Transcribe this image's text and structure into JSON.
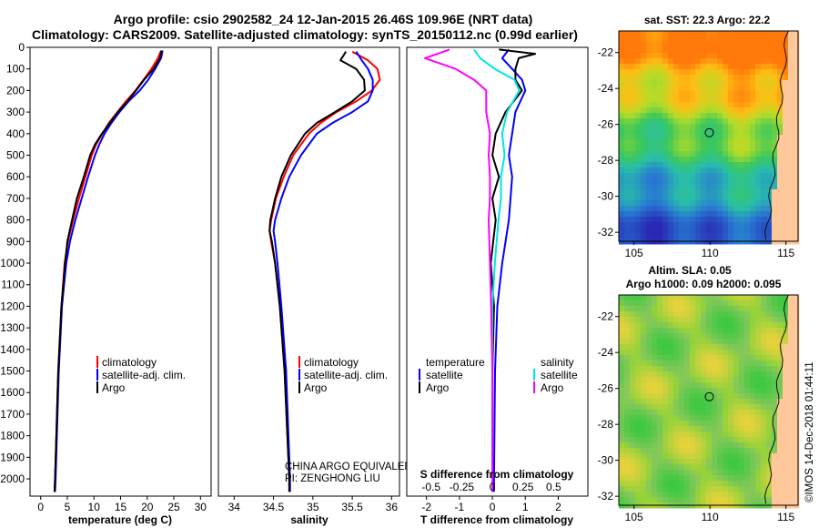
{
  "title": {
    "line1": "Argo profile: csio 2902582_24 12-Jan-2015 26.46S 109.96E (NRT data)",
    "line2": "Climatology: CARS2009. Satellite-adjusted climatology: synTS_20150112.nc (0.99d earlier)"
  },
  "colors": {
    "climatology": "#ff0000",
    "satellite": "#0000ff",
    "argo": "#000000",
    "argo_salinity": "#ff00ff",
    "satellite_salinity": "#00e5e5"
  },
  "depth_axis": {
    "ticks": [
      0,
      100,
      200,
      300,
      400,
      500,
      600,
      700,
      800,
      900,
      1000,
      1100,
      1200,
      1300,
      1400,
      1500,
      1600,
      1700,
      1800,
      1900,
      2000
    ],
    "range": [
      0,
      2080
    ]
  },
  "chart_data": [
    {
      "type": "line",
      "id": "temperature",
      "xlabel": "temperature (deg C)",
      "ylabel": "depth",
      "xlim": [
        -2,
        32
      ],
      "ylim": [
        2080,
        0
      ],
      "xticks": [
        0,
        5,
        10,
        15,
        20,
        25,
        30
      ],
      "legend": [
        "climatology",
        "satellite-adj. clim.",
        "Argo"
      ],
      "series": [
        {
          "name": "climatology",
          "depth": [
            15,
            50,
            100,
            150,
            200,
            250,
            300,
            350,
            400,
            450,
            500,
            600,
            700,
            800,
            900,
            1000,
            1200,
            1500,
            2000,
            2060
          ],
          "values": [
            22.6,
            22.0,
            20.8,
            19.3,
            17.8,
            16.0,
            14.4,
            12.8,
            11.6,
            10.4,
            9.6,
            8.4,
            7.2,
            6.1,
            5.1,
            4.5,
            3.9,
            3.3,
            2.7,
            2.6
          ]
        },
        {
          "name": "satellite-adj. clim.",
          "depth": [
            15,
            50,
            100,
            150,
            200,
            250,
            300,
            350,
            400,
            450,
            500,
            600,
            700,
            800,
            900,
            1000,
            1200,
            1500,
            2000,
            2060
          ],
          "values": [
            22.9,
            22.6,
            21.5,
            20.2,
            18.6,
            16.5,
            14.8,
            13.3,
            12.0,
            11.0,
            10.2,
            8.9,
            7.7,
            6.5,
            5.5,
            4.8,
            4.0,
            3.4,
            2.8,
            2.7
          ]
        },
        {
          "name": "Argo",
          "depth": [
            15,
            50,
            100,
            150,
            200,
            250,
            300,
            350,
            400,
            450,
            500,
            600,
            700,
            800,
            900,
            1000,
            1200,
            1500,
            2000,
            2060
          ],
          "values": [
            22.7,
            22.4,
            21.2,
            19.4,
            17.9,
            16.3,
            14.5,
            13.0,
            11.5,
            10.2,
            9.3,
            8.1,
            6.8,
            5.9,
            5.0,
            4.6,
            3.9,
            3.3,
            2.7,
            2.6
          ]
        }
      ]
    },
    {
      "type": "line",
      "id": "salinity",
      "xlabel": "salinity",
      "ylabel": "depth",
      "xlim": [
        33.8,
        36.1
      ],
      "ylim": [
        2080,
        0
      ],
      "xticks": [
        34,
        34.5,
        35,
        35.5,
        36
      ],
      "legend": [
        "climatology",
        "satellite-adj. clim.",
        "Argo"
      ],
      "annotations": [
        "CHINA ARGO EQUIVALENT",
        "PI: ZENGHONG LIU"
      ],
      "series": [
        {
          "name": "climatology",
          "depth": [
            20,
            60,
            100,
            150,
            200,
            250,
            300,
            350,
            400,
            500,
            600,
            700,
            800,
            850,
            900,
            1000,
            1200,
            1500,
            2000,
            2060
          ],
          "values": [
            35.5,
            35.7,
            35.82,
            35.85,
            35.75,
            35.55,
            35.3,
            35.1,
            34.95,
            34.75,
            34.63,
            34.53,
            34.47,
            34.45,
            34.47,
            34.52,
            34.58,
            34.64,
            34.7,
            34.7
          ]
        },
        {
          "name": "satellite-adj. clim.",
          "depth": [
            20,
            60,
            100,
            150,
            200,
            250,
            300,
            350,
            400,
            500,
            600,
            700,
            800,
            850,
            900,
            1000,
            1200,
            1500,
            2000,
            2060
          ],
          "values": [
            35.55,
            35.62,
            35.7,
            35.76,
            35.76,
            35.7,
            35.5,
            35.25,
            35.05,
            34.85,
            34.7,
            34.6,
            34.52,
            34.5,
            34.52,
            34.55,
            34.6,
            34.66,
            34.71,
            34.71
          ]
        },
        {
          "name": "Argo",
          "depth": [
            20,
            60,
            100,
            150,
            200,
            250,
            300,
            350,
            400,
            500,
            600,
            700,
            800,
            850,
            900,
            1000,
            1200,
            1500,
            2000,
            2060
          ],
          "values": [
            35.42,
            35.35,
            35.55,
            35.65,
            35.66,
            35.5,
            35.28,
            35.05,
            34.9,
            34.72,
            34.6,
            34.52,
            34.46,
            34.45,
            34.48,
            34.52,
            34.58,
            34.64,
            34.7,
            34.7
          ]
        }
      ]
    },
    {
      "type": "line",
      "id": "difference",
      "xlabel": "T difference from climatology",
      "xlabel2": "S difference from climatology",
      "xlim": [
        -2.6,
        2.9
      ],
      "ylim": [
        2080,
        0
      ],
      "xticks": [
        -2,
        -1,
        0,
        1,
        2
      ],
      "sticks": [
        "-0.5",
        "-0.25",
        "0",
        "0.25",
        "0.5"
      ],
      "legend_temperature_title": "temperature",
      "legend_salinity_title": "salinity",
      "legend": [
        "satellite",
        "Argo"
      ],
      "series": [
        {
          "name": "temperature satellite",
          "depth": [
            10,
            50,
            100,
            150,
            200,
            300,
            400,
            500,
            600,
            700,
            800,
            1000,
            1200,
            1500,
            2000,
            2060
          ],
          "values": [
            0.5,
            0.3,
            0.6,
            0.9,
            1.0,
            0.7,
            0.6,
            0.5,
            0.6,
            0.55,
            0.5,
            0.3,
            0.15,
            0.08,
            0.05,
            0.05
          ]
        },
        {
          "name": "temperature Argo",
          "depth": [
            10,
            30,
            50,
            100,
            150,
            200,
            300,
            400,
            500,
            600,
            700,
            800,
            1000,
            1200,
            1500,
            2000,
            2060
          ],
          "values": [
            0.2,
            1.3,
            0.8,
            0.7,
            0.7,
            0.9,
            0.4,
            0.1,
            0.0,
            0.2,
            0.0,
            0.1,
            -0.05,
            0.05,
            0.0,
            0.0,
            0.0
          ]
        },
        {
          "name": "salinity satellite",
          "depth": [
            10,
            50,
            100,
            150,
            200,
            300,
            400,
            500,
            600,
            700,
            800,
            1000,
            1200,
            1500,
            2000,
            2060
          ],
          "values": [
            -0.15,
            -0.1,
            0.02,
            0.18,
            0.22,
            0.12,
            0.08,
            0.1,
            0.07,
            0.07,
            0.05,
            0.02,
            0.0,
            0.0,
            0.0,
            0.0
          ]
        },
        {
          "name": "salinity Argo",
          "depth": [
            10,
            50,
            100,
            150,
            200,
            300,
            400,
            500,
            600,
            700,
            800,
            1000,
            1200,
            1500,
            2000,
            2060
          ],
          "values": [
            -0.35,
            -0.55,
            -0.3,
            -0.15,
            -0.05,
            -0.05,
            -0.02,
            -0.03,
            -0.02,
            -0.02,
            -0.03,
            -0.02,
            -0.01,
            0.0,
            0.0,
            0.0
          ]
        }
      ]
    },
    {
      "type": "heatmap",
      "id": "sst_map",
      "title": "sat. SST: 22.3 Argo: 22.2",
      "xlim": [
        104,
        115.8
      ],
      "ylim": [
        -32.5,
        -20.8
      ],
      "xticks": [
        105,
        110,
        115
      ],
      "yticks": [
        -22,
        -24,
        -26,
        -28,
        -30,
        -32
      ],
      "marker": {
        "lon": 109.96,
        "lat": -26.46
      }
    },
    {
      "type": "heatmap",
      "id": "sla_map",
      "title": "Altim. SLA: 0.05",
      "subtitle": "Argo h1000: 0.09 h2000: 0.095",
      "xlim": [
        104,
        115.8
      ],
      "ylim": [
        -32.5,
        -20.8
      ],
      "xticks": [
        105,
        110,
        115
      ],
      "yticks": [
        -22,
        -24,
        -26,
        -28,
        -30,
        -32
      ],
      "marker": {
        "lon": 109.96,
        "lat": -26.46
      }
    }
  ],
  "credit": "©IMOS 14-Dec-2018 01:44:11"
}
